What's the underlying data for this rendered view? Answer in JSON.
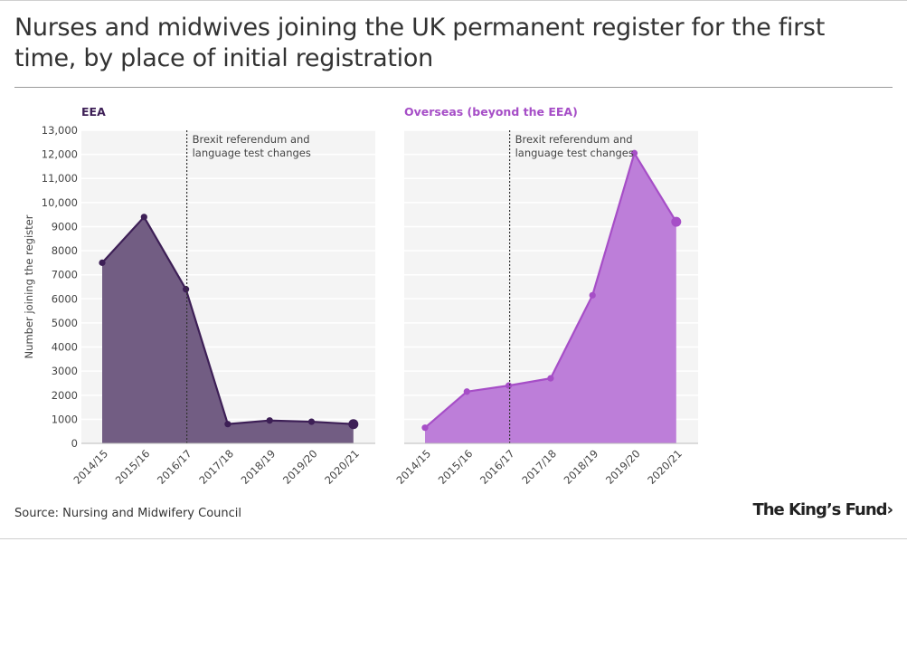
{
  "header": {
    "title": "Nurses and midwives joining the UK permanent register for the first time, by place of initial registration"
  },
  "footer": {
    "source": "Source: Nursing and Midwifery Council",
    "logo_text": "The King’s Fund›"
  },
  "chart_data": [
    {
      "type": "area",
      "title": "EEA",
      "ylabel": "Number joining the register",
      "xlabel": "",
      "categories": [
        "2014/15",
        "2015/16",
        "2016/17",
        "2017/18",
        "2018/19",
        "2019/20",
        "2020/21"
      ],
      "values": [
        7500,
        9400,
        6400,
        800,
        950,
        900,
        800
      ],
      "ylim": [
        0,
        13000
      ],
      "yticks": [
        0,
        1000,
        2000,
        3000,
        4000,
        5000,
        6000,
        7000,
        8000,
        9000,
        10000,
        11000,
        12000,
        13000
      ],
      "ytick_labels": [
        "0",
        "1000",
        "2000",
        "3000",
        "4000",
        "5000",
        "6000",
        "7000",
        "8000",
        "9000",
        "10,000",
        "11,000",
        "12,000",
        "13,000"
      ],
      "grid": true,
      "color": "#3d1f56",
      "fill_color": "#725d83",
      "annotation": {
        "at": "2016/17",
        "lines": [
          "Brexit referendum and",
          "language test changes"
        ]
      }
    },
    {
      "type": "area",
      "title": "Overseas (beyond the EEA)",
      "ylabel": "",
      "xlabel": "",
      "categories": [
        "2014/15",
        "2015/16",
        "2016/17",
        "2017/18",
        "2018/19",
        "2019/20",
        "2020/21"
      ],
      "values": [
        650,
        2150,
        2400,
        2700,
        6150,
        12050,
        9200
      ],
      "ylim": [
        0,
        13000
      ],
      "grid": true,
      "color": "#a64ec7",
      "fill_color": "#bd7ed9",
      "annotation": {
        "at": "2016/17",
        "lines": [
          "Brexit referendum and",
          "language test changes"
        ]
      }
    }
  ]
}
